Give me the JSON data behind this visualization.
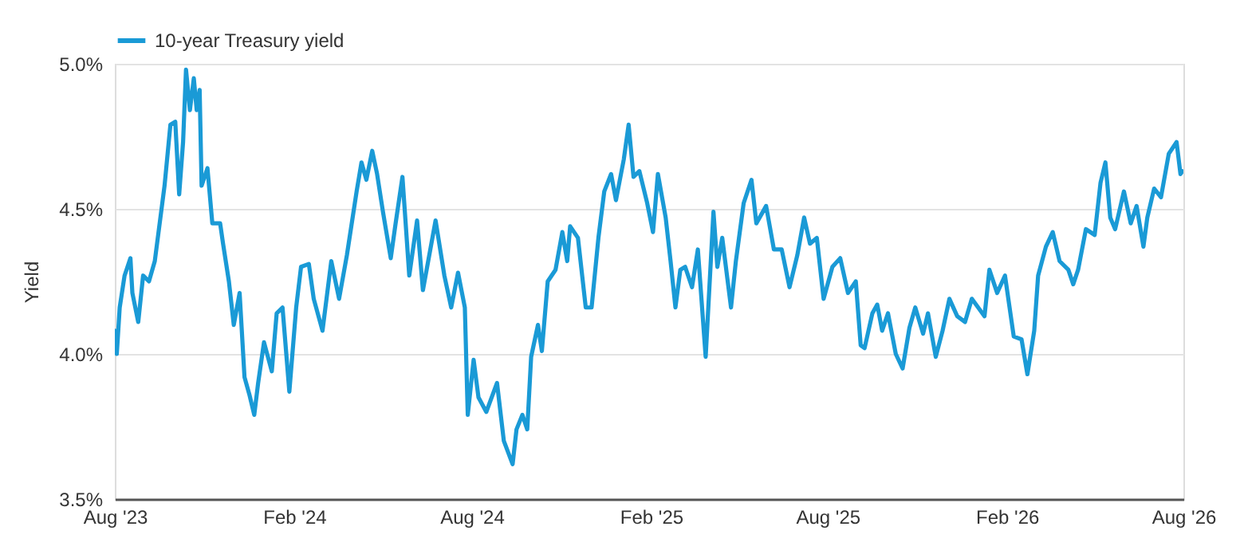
{
  "chart_data": {
    "type": "line",
    "ylabel": "Yield",
    "x": [
      "2023-08-01",
      "2023-08-03",
      "2023-08-06",
      "2023-08-11",
      "2023-08-17",
      "2023-08-19",
      "2023-08-25",
      "2023-08-30",
      "2023-09-05",
      "2023-09-11",
      "2023-09-16",
      "2023-09-21",
      "2023-09-27",
      "2023-10-02",
      "2023-10-06",
      "2023-10-10",
      "2023-10-13",
      "2023-10-17",
      "2023-10-21",
      "2023-10-24",
      "2023-10-27",
      "2023-10-29",
      "2023-11-04",
      "2023-11-09",
      "2023-11-17",
      "2023-11-20",
      "2023-11-26",
      "2023-12-01",
      "2023-12-07",
      "2023-12-12",
      "2023-12-17",
      "2023-12-22",
      "2023-12-26",
      "2024-01-01",
      "2024-01-09",
      "2024-01-14",
      "2024-01-20",
      "2024-01-27",
      "2024-02-03",
      "2024-02-08",
      "2024-02-16",
      "2024-02-21",
      "2024-03-01",
      "2024-03-10",
      "2024-03-18",
      "2024-03-26",
      "2024-04-05",
      "2024-04-10",
      "2024-04-15",
      "2024-04-21",
      "2024-04-26",
      "2024-05-02",
      "2024-05-10",
      "2024-05-15",
      "2024-05-22",
      "2024-05-29",
      "2024-06-06",
      "2024-06-12",
      "2024-06-25",
      "2024-07-04",
      "2024-07-11",
      "2024-07-18",
      "2024-07-25",
      "2024-07-28",
      "2024-08-03",
      "2024-08-08",
      "2024-08-16",
      "2024-08-27",
      "2024-09-03",
      "2024-09-12",
      "2024-09-16",
      "2024-09-22",
      "2024-09-27",
      "2024-10-01",
      "2024-10-08",
      "2024-10-12",
      "2024-10-18",
      "2024-10-26",
      "2024-11-02",
      "2024-11-07",
      "2024-11-10",
      "2024-11-18",
      "2024-11-26",
      "2024-12-02",
      "2024-12-09",
      "2024-12-15",
      "2024-12-22",
      "2024-12-27",
      "2025-01-04",
      "2025-01-09",
      "2025-01-14",
      "2025-01-20",
      "2025-01-28",
      "2025-02-03",
      "2025-02-08",
      "2025-02-16",
      "2025-02-21",
      "2025-02-26",
      "2025-03-03",
      "2025-03-08",
      "2025-03-15",
      "2025-03-21",
      "2025-03-29",
      "2025-04-06",
      "2025-04-10",
      "2025-04-15",
      "2025-04-24",
      "2025-04-29",
      "2025-05-07",
      "2025-05-15",
      "2025-05-20",
      "2025-05-30",
      "2025-06-07",
      "2025-06-15",
      "2025-06-23",
      "2025-07-01",
      "2025-07-08",
      "2025-07-14",
      "2025-07-21",
      "2025-07-28",
      "2025-08-06",
      "2025-08-14",
      "2025-08-22",
      "2025-08-30",
      "2025-09-04",
      "2025-09-08",
      "2025-09-16",
      "2025-09-21",
      "2025-09-26",
      "2025-10-02",
      "2025-10-10",
      "2025-10-17",
      "2025-10-24",
      "2025-10-30",
      "2025-11-07",
      "2025-11-12",
      "2025-11-20",
      "2025-11-27",
      "2025-12-04",
      "2025-12-12",
      "2025-12-20",
      "2025-12-27",
      "2026-01-09",
      "2026-01-14",
      "2026-01-22",
      "2026-01-30",
      "2026-02-08",
      "2026-02-16",
      "2026-02-22",
      "2026-03-01",
      "2026-03-05",
      "2026-03-13",
      "2026-03-20",
      "2026-03-27",
      "2026-04-05",
      "2026-04-10",
      "2026-04-15",
      "2026-04-23",
      "2026-05-02",
      "2026-05-08",
      "2026-05-13",
      "2026-05-18",
      "2026-05-23",
      "2026-06-01",
      "2026-06-08",
      "2026-06-14",
      "2026-06-21",
      "2026-06-25",
      "2026-07-02",
      "2026-07-09",
      "2026-07-17",
      "2026-07-25",
      "2026-07-29",
      "2026-07-31"
    ],
    "series": [
      {
        "name": "10-year Treasury yield",
        "color": "#1a9ad6",
        "values": [
          4.08,
          4.0,
          4.16,
          4.27,
          4.33,
          4.21,
          4.11,
          4.27,
          4.25,
          4.32,
          4.45,
          4.58,
          4.79,
          4.8,
          4.55,
          4.73,
          4.98,
          4.84,
          4.95,
          4.84,
          4.91,
          4.58,
          4.64,
          4.45,
          4.45,
          4.38,
          4.25,
          4.1,
          4.21,
          3.92,
          3.86,
          3.79,
          3.9,
          4.04,
          3.94,
          4.14,
          4.16,
          3.87,
          4.16,
          4.3,
          4.31,
          4.19,
          4.08,
          4.32,
          4.19,
          4.34,
          4.56,
          4.66,
          4.6,
          4.7,
          4.62,
          4.49,
          4.33,
          4.45,
          4.61,
          4.27,
          4.46,
          4.22,
          4.46,
          4.27,
          4.16,
          4.28,
          4.16,
          3.79,
          3.98,
          3.85,
          3.8,
          3.9,
          3.7,
          3.62,
          3.74,
          3.79,
          3.74,
          3.99,
          4.1,
          4.01,
          4.25,
          4.29,
          4.42,
          4.32,
          4.44,
          4.4,
          4.16,
          4.16,
          4.4,
          4.56,
          4.62,
          4.53,
          4.67,
          4.79,
          4.61,
          4.63,
          4.52,
          4.42,
          4.62,
          4.47,
          4.32,
          4.16,
          4.29,
          4.3,
          4.23,
          4.36,
          3.99,
          4.49,
          4.3,
          4.4,
          4.16,
          4.32,
          4.52,
          4.6,
          4.45,
          4.51,
          4.36,
          4.36,
          4.23,
          4.34,
          4.47,
          4.38,
          4.4,
          4.19,
          4.3,
          4.33,
          4.21,
          4.25,
          4.03,
          4.02,
          4.14,
          4.17,
          4.08,
          4.14,
          4.0,
          3.95,
          4.09,
          4.16,
          4.07,
          4.14,
          3.99,
          4.08,
          4.19,
          4.13,
          4.11,
          4.19,
          4.13,
          4.29,
          4.21,
          4.27,
          4.06,
          4.05,
          3.93,
          4.08,
          4.27,
          4.37,
          4.42,
          4.32,
          4.29,
          4.24,
          4.29,
          4.43,
          4.41,
          4.59,
          4.66,
          4.47,
          4.43,
          4.56,
          4.45,
          4.51,
          4.37,
          4.47,
          4.57,
          4.54,
          4.69,
          4.73,
          4.62,
          4.63
        ]
      }
    ],
    "xlim": [
      "2023-08-01",
      "2026-08-01"
    ],
    "xticks": [
      {
        "value": "2023-08-01",
        "label": "Aug '23"
      },
      {
        "value": "2024-02-01",
        "label": "Feb '24"
      },
      {
        "value": "2024-08-01",
        "label": "Aug '24"
      },
      {
        "value": "2025-02-01",
        "label": "Feb '25"
      },
      {
        "value": "2025-08-01",
        "label": "Aug '25"
      },
      {
        "value": "2026-02-01",
        "label": "Feb '26"
      },
      {
        "value": "2026-08-01",
        "label": "Aug '26"
      }
    ],
    "ylim": [
      3.5,
      5.0
    ],
    "yticks": [
      {
        "value": 3.5,
        "label": "3.5%"
      },
      {
        "value": 4.0,
        "label": "4.0%"
      },
      {
        "value": 4.5,
        "label": "4.5%"
      },
      {
        "value": 5.0,
        "label": "5.0%"
      }
    ],
    "grid": "y",
    "legend": "top left",
    "marker": "none",
    "line_style": "solid"
  }
}
